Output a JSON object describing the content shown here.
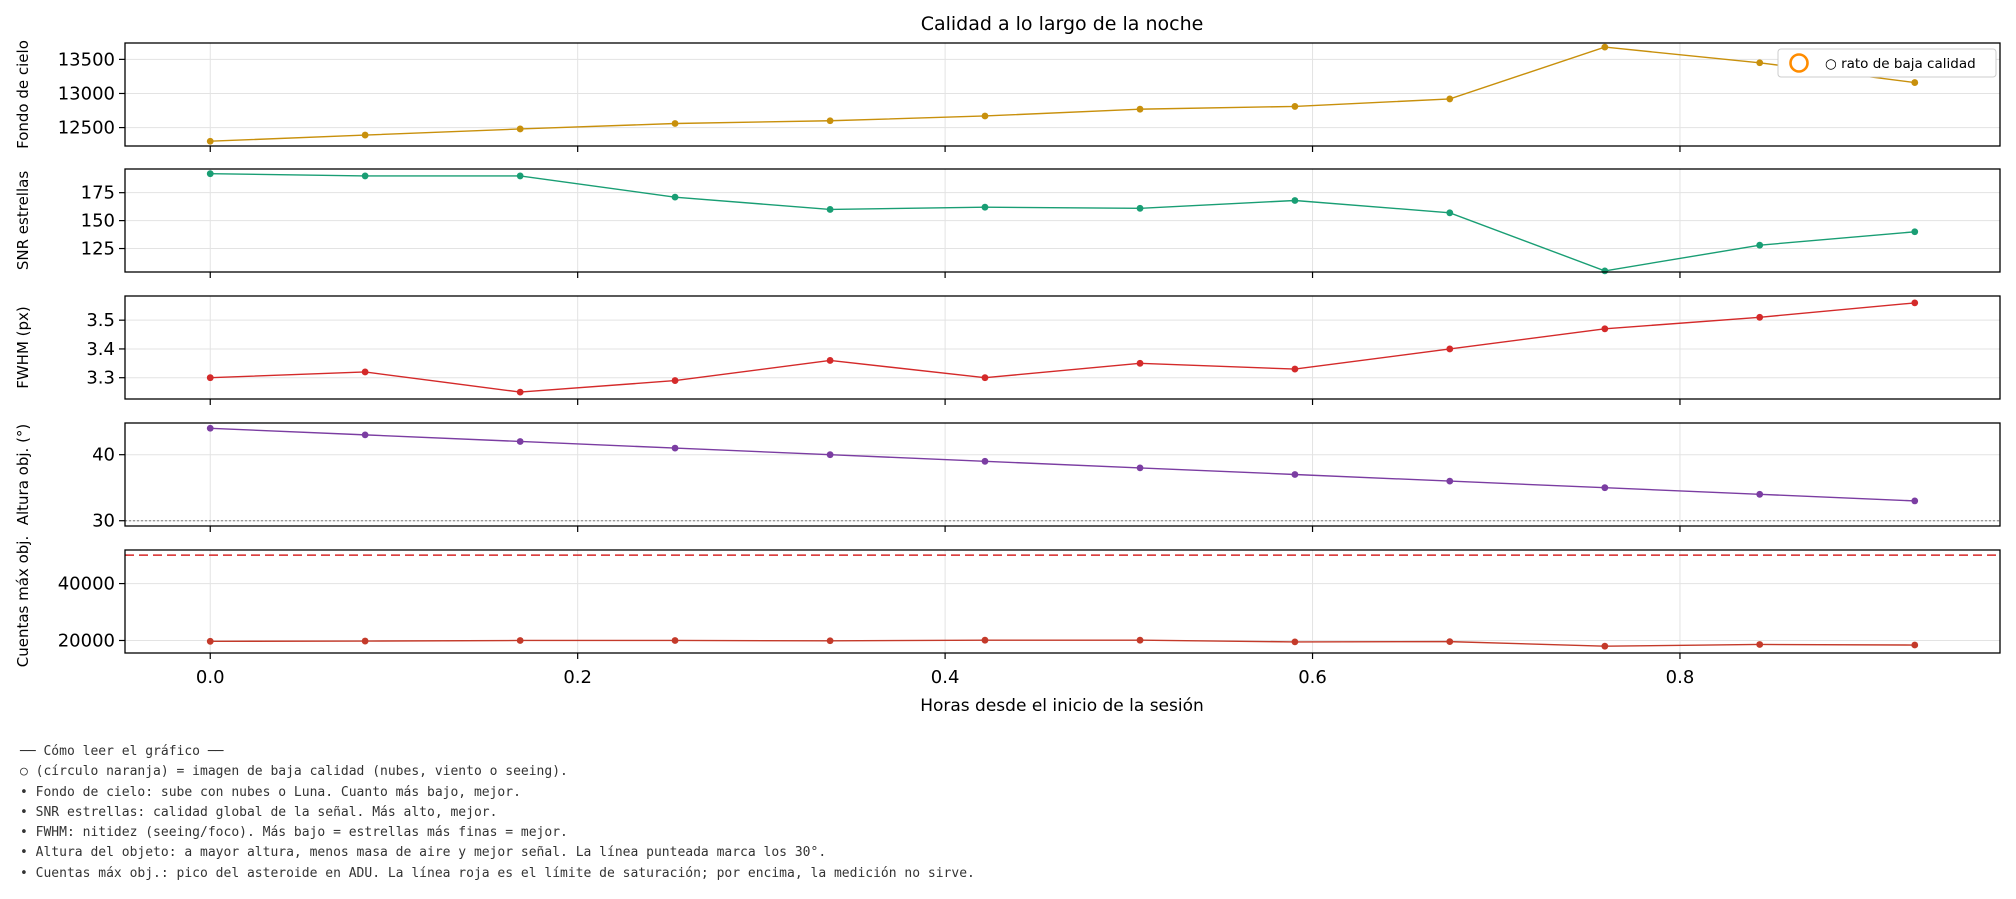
{
  "chart_data": {
    "type": "line",
    "title": "Calidad a lo largo de la noche",
    "xlabel": "Horas desde el inicio de la sesión",
    "x": [
      0.0,
      0.0843,
      0.1687,
      0.253,
      0.3374,
      0.4217,
      0.5061,
      0.5904,
      0.6747,
      0.7591,
      0.8434,
      0.9278
    ],
    "xlim": [
      -0.0464,
      0.9742
    ],
    "xticks": [
      0.0,
      0.2,
      0.4,
      0.6,
      0.8
    ],
    "xtick_labels": [
      "0.0",
      "0.2",
      "0.4",
      "0.6",
      "0.8"
    ],
    "grid": true,
    "legend": {
      "placement": "upper-right",
      "label": "○ rato de baja calidad",
      "marker_color": "#ff8c00"
    },
    "panels": [
      {
        "ylabel": "Fondo de cielo",
        "color": "#c8900c",
        "ylim": [
          12230,
          13740
        ],
        "yticks": [
          12500,
          13000,
          13500
        ],
        "ytick_labels": [
          "12500",
          "13000",
          "13500"
        ],
        "values": [
          12300,
          12390,
          12480,
          12560,
          12600,
          12670,
          12770,
          12810,
          12920,
          13680,
          13450,
          13160
        ]
      },
      {
        "ylabel": "SNR estrellas",
        "color": "#199e74",
        "ylim": [
          104.0,
          196.2
        ],
        "yticks": [
          125,
          150,
          175
        ],
        "ytick_labels": [
          "125",
          "150",
          "175"
        ],
        "values": [
          192,
          190,
          190,
          171,
          160,
          162,
          161,
          168,
          157,
          105,
          128,
          140
        ]
      },
      {
        "ylabel": "FWHM (px)",
        "color": "#d42a2a",
        "ylim": [
          3.226,
          3.584
        ],
        "yticks": [
          3.3,
          3.4,
          3.5
        ],
        "ytick_labels": [
          "3.3",
          "3.4",
          "3.5"
        ],
        "values": [
          3.3,
          3.32,
          3.25,
          3.29,
          3.36,
          3.3,
          3.35,
          3.33,
          3.4,
          3.47,
          3.51,
          3.56
        ]
      },
      {
        "ylabel": "Altura obj. (°)",
        "color": "#7b3da2",
        "ylim": [
          29.2,
          44.8
        ],
        "yticks": [
          30,
          40
        ],
        "ytick_labels": [
          "30",
          "40"
        ],
        "values": [
          44,
          43,
          42,
          41,
          40,
          39,
          38,
          37,
          36,
          35,
          34,
          33
        ],
        "reference_line": {
          "value": 30,
          "style": "dotted",
          "color": "#999999"
        }
      },
      {
        "ylabel": "Cuentas máx obj.",
        "color": "#c43a2a",
        "ylim": [
          15600,
          51800
        ],
        "yticks": [
          20000,
          40000
        ],
        "ytick_labels": [
          "20000",
          "40000"
        ],
        "values": [
          19700,
          19800,
          20000,
          20000,
          19900,
          20100,
          20100,
          19500,
          19600,
          18000,
          18600,
          18400
        ],
        "reference_line": {
          "value": 50000,
          "style": "dashed",
          "color": "#d62728"
        }
      }
    ]
  },
  "notes": [
    "── Cómo leer el gráfico ──",
    "○ (círculo naranja) = imagen de baja calidad (nubes, viento o seeing).",
    "• Fondo de cielo: sube con nubes o Luna. Cuanto más bajo, mejor.",
    "• SNR estrellas: calidad global de la señal. Más alto, mejor.",
    "• FWHM: nitidez (seeing/foco). Más bajo = estrellas más finas = mejor.",
    "• Altura del objeto: a mayor altura, menos masa de aire y mejor señal. La línea punteada marca los 30°.",
    "• Cuentas máx obj.: pico del asteroide en ADU. La línea roja es el límite de saturación; por encima, la medición no sirve."
  ]
}
